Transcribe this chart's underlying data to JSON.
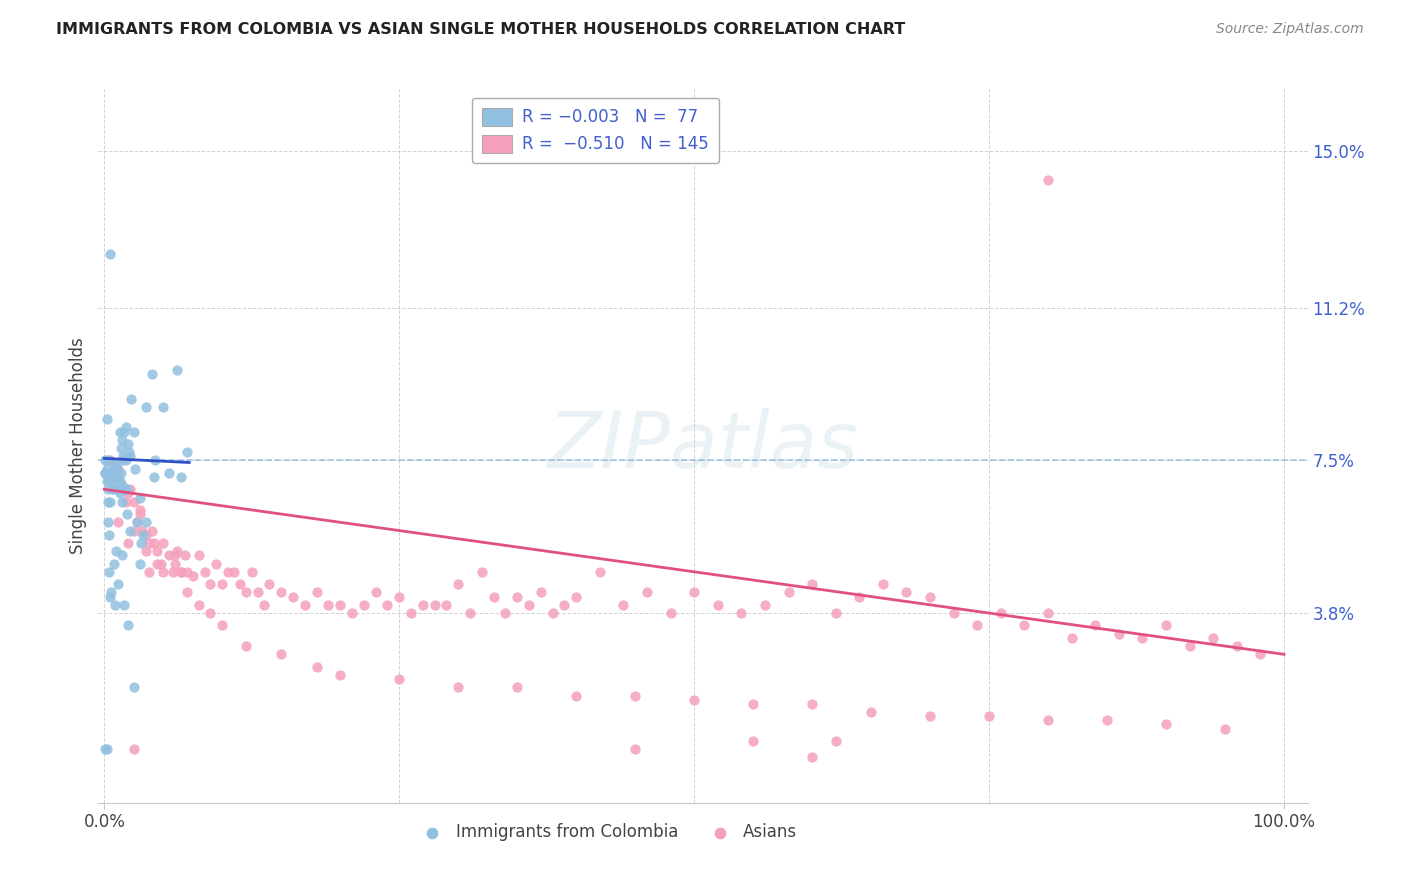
{
  "title": "IMMIGRANTS FROM COLOMBIA VS ASIAN SINGLE MOTHER HOUSEHOLDS CORRELATION CHART",
  "source": "Source: ZipAtlas.com",
  "ylabel": "Single Mother Households",
  "blue_color": "#92c0e0",
  "pink_color": "#f4a0bc",
  "blue_line_color": "#3050c8",
  "pink_line_color": "#e05080",
  "dashed_line_color": "#92c0e0",
  "grid_color": "#c8c8c8",
  "tick_label_color": "#4060d0",
  "ylabel_values": [
    0.038,
    0.075,
    0.112,
    0.15
  ],
  "ylabel_ticks": [
    "3.8%",
    "7.5%",
    "11.2%",
    "15.0%"
  ],
  "xmin": -0.005,
  "xmax": 1.02,
  "ymin": -0.008,
  "ymax": 0.165,
  "colombia_x": [
    0.002,
    0.003,
    0.004,
    0.005,
    0.006,
    0.007,
    0.008,
    0.008,
    0.009,
    0.009,
    0.01,
    0.01,
    0.011,
    0.011,
    0.012,
    0.012,
    0.013,
    0.013,
    0.013,
    0.014,
    0.014,
    0.015,
    0.015,
    0.015,
    0.016,
    0.016,
    0.017,
    0.017,
    0.018,
    0.018,
    0.019,
    0.019,
    0.02,
    0.021,
    0.022,
    0.023,
    0.025,
    0.026,
    0.028,
    0.03,
    0.031,
    0.033,
    0.035,
    0.035,
    0.04,
    0.042,
    0.043,
    0.05,
    0.055,
    0.062,
    0.065,
    0.07,
    0.001,
    0.002,
    0.003,
    0.004,
    0.005,
    0.006,
    0.008,
    0.01,
    0.012,
    0.015,
    0.017,
    0.02,
    0.022,
    0.025,
    0.03,
    0.001,
    0.003,
    0.004,
    0.005,
    0.007,
    0.009,
    0.001,
    0.002,
    0.003,
    0.001,
    0.002
  ],
  "colombia_y": [
    0.085,
    0.06,
    0.057,
    0.125,
    0.072,
    0.068,
    0.072,
    0.072,
    0.074,
    0.071,
    0.074,
    0.073,
    0.072,
    0.07,
    0.071,
    0.068,
    0.082,
    0.07,
    0.067,
    0.078,
    0.072,
    0.08,
    0.069,
    0.065,
    0.076,
    0.075,
    0.082,
    0.068,
    0.083,
    0.075,
    0.068,
    0.062,
    0.079,
    0.077,
    0.076,
    0.09,
    0.082,
    0.073,
    0.06,
    0.066,
    0.055,
    0.057,
    0.088,
    0.06,
    0.096,
    0.071,
    0.075,
    0.088,
    0.072,
    0.097,
    0.071,
    0.077,
    0.075,
    0.073,
    0.065,
    0.048,
    0.042,
    0.043,
    0.05,
    0.053,
    0.045,
    0.052,
    0.04,
    0.035,
    0.058,
    0.02,
    0.05,
    0.072,
    0.075,
    0.07,
    0.065,
    0.068,
    0.04,
    0.072,
    0.07,
    0.068,
    0.005,
    0.005
  ],
  "asian_x": [
    0.005,
    0.01,
    0.012,
    0.015,
    0.018,
    0.02,
    0.022,
    0.025,
    0.028,
    0.03,
    0.032,
    0.035,
    0.038,
    0.04,
    0.042,
    0.045,
    0.048,
    0.05,
    0.055,
    0.058,
    0.06,
    0.062,
    0.065,
    0.068,
    0.07,
    0.075,
    0.08,
    0.085,
    0.09,
    0.095,
    0.1,
    0.105,
    0.11,
    0.115,
    0.12,
    0.125,
    0.13,
    0.135,
    0.14,
    0.15,
    0.16,
    0.17,
    0.18,
    0.19,
    0.2,
    0.21,
    0.22,
    0.23,
    0.24,
    0.25,
    0.26,
    0.27,
    0.28,
    0.29,
    0.3,
    0.31,
    0.32,
    0.33,
    0.34,
    0.35,
    0.36,
    0.37,
    0.38,
    0.39,
    0.4,
    0.42,
    0.44,
    0.46,
    0.48,
    0.5,
    0.52,
    0.54,
    0.56,
    0.58,
    0.6,
    0.62,
    0.64,
    0.66,
    0.68,
    0.7,
    0.72,
    0.74,
    0.76,
    0.78,
    0.8,
    0.82,
    0.84,
    0.86,
    0.88,
    0.9,
    0.92,
    0.94,
    0.96,
    0.98,
    0.8,
    0.012,
    0.02,
    0.025,
    0.03,
    0.035,
    0.038,
    0.045,
    0.05,
    0.06,
    0.065,
    0.07,
    0.08,
    0.09,
    0.1,
    0.12,
    0.15,
    0.18,
    0.2,
    0.25,
    0.3,
    0.35,
    0.4,
    0.45,
    0.5,
    0.55,
    0.6,
    0.65,
    0.7,
    0.75,
    0.8,
    0.85,
    0.9,
    0.95,
    0.025,
    0.45,
    0.6,
    0.55,
    0.62
  ],
  "asian_y": [
    0.075,
    0.071,
    0.073,
    0.068,
    0.065,
    0.067,
    0.068,
    0.065,
    0.06,
    0.063,
    0.058,
    0.057,
    0.055,
    0.058,
    0.055,
    0.053,
    0.05,
    0.055,
    0.052,
    0.048,
    0.05,
    0.053,
    0.048,
    0.052,
    0.048,
    0.047,
    0.052,
    0.048,
    0.045,
    0.05,
    0.045,
    0.048,
    0.048,
    0.045,
    0.043,
    0.048,
    0.043,
    0.04,
    0.045,
    0.043,
    0.042,
    0.04,
    0.043,
    0.04,
    0.04,
    0.038,
    0.04,
    0.043,
    0.04,
    0.042,
    0.038,
    0.04,
    0.04,
    0.04,
    0.045,
    0.038,
    0.048,
    0.042,
    0.038,
    0.042,
    0.04,
    0.043,
    0.038,
    0.04,
    0.042,
    0.048,
    0.04,
    0.043,
    0.038,
    0.043,
    0.04,
    0.038,
    0.04,
    0.043,
    0.045,
    0.038,
    0.042,
    0.045,
    0.043,
    0.042,
    0.038,
    0.035,
    0.038,
    0.035,
    0.038,
    0.032,
    0.035,
    0.033,
    0.032,
    0.035,
    0.03,
    0.032,
    0.03,
    0.028,
    0.143,
    0.06,
    0.055,
    0.058,
    0.062,
    0.053,
    0.048,
    0.05,
    0.048,
    0.052,
    0.048,
    0.043,
    0.04,
    0.038,
    0.035,
    0.03,
    0.028,
    0.025,
    0.023,
    0.022,
    0.02,
    0.02,
    0.018,
    0.018,
    0.017,
    0.016,
    0.016,
    0.014,
    0.013,
    0.013,
    0.012,
    0.012,
    0.011,
    0.01,
    0.005,
    0.005,
    0.003,
    0.007,
    0.007
  ],
  "colombia_line_x": [
    0.0,
    0.072
  ],
  "colombia_line_y": [
    0.0755,
    0.0745
  ],
  "asian_line_x": [
    0.0,
    1.0
  ],
  "asian_line_y": [
    0.068,
    0.028
  ]
}
